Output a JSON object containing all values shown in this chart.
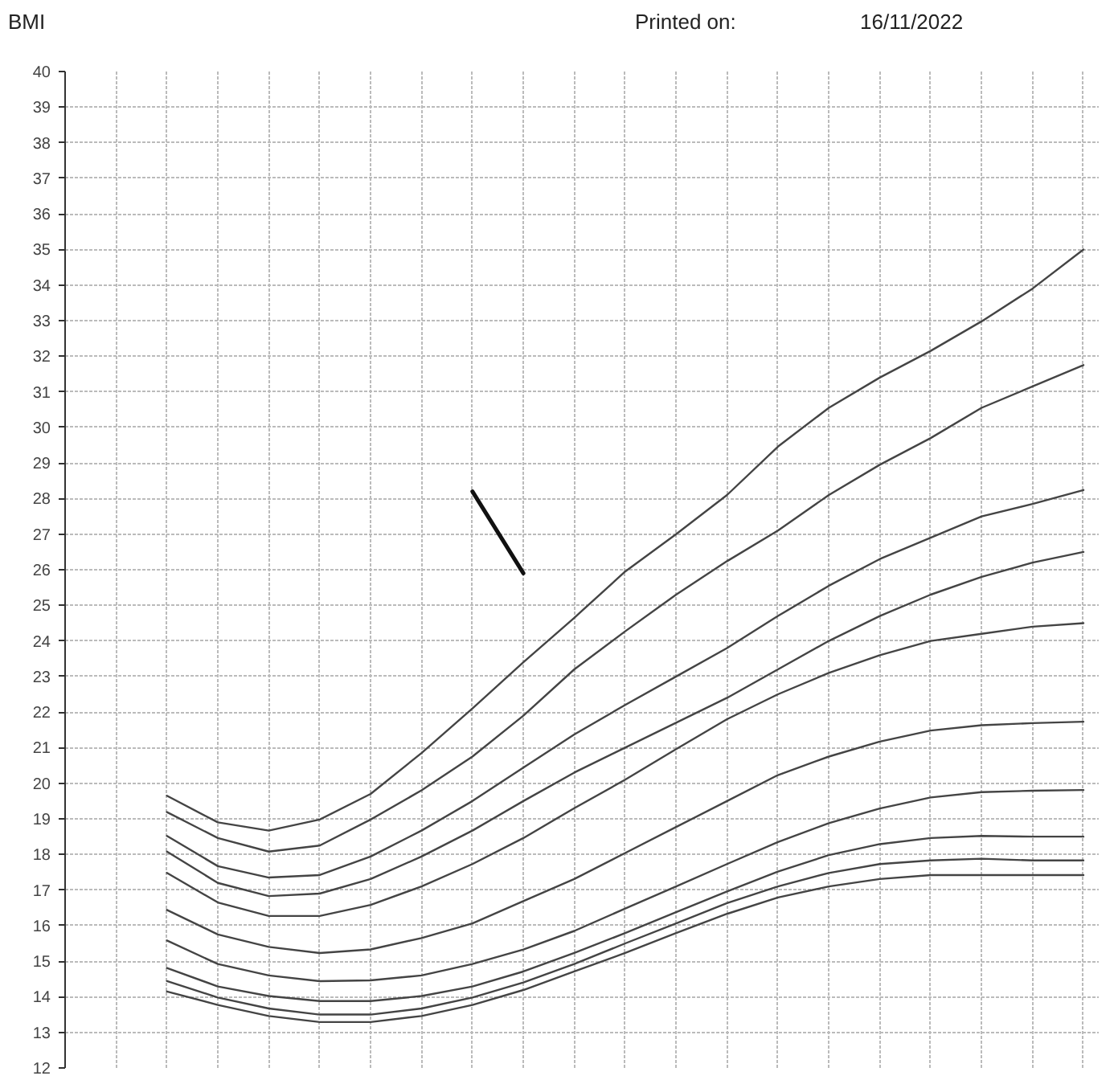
{
  "chart_data": {
    "type": "line",
    "title": "BMI",
    "annotations": [
      "Printed on:",
      "16/11/2022"
    ],
    "categories": [
      null,
      null,
      null,
      null,
      null,
      null,
      null,
      null,
      null,
      null,
      null,
      null,
      null,
      null,
      null,
      null,
      null,
      null,
      null,
      null,
      null
    ],
    "series": [
      {
        "color": "#444444",
        "values": [
          null,
          null,
          19.65,
          18.9,
          18.67,
          18.98,
          19.7,
          20.85,
          22.1,
          23.4,
          24.65,
          25.95,
          27.0,
          28.1,
          29.46,
          30.55,
          31.4,
          32.15,
          32.98,
          33.9,
          35.0
        ]
      },
      {
        "color": "#444444",
        "values": [
          null,
          null,
          19.19,
          18.46,
          18.08,
          18.25,
          18.98,
          19.8,
          20.75,
          21.9,
          23.2,
          24.27,
          25.3,
          26.24,
          27.1,
          28.1,
          28.95,
          29.7,
          30.55,
          31.15,
          31.75
        ]
      },
      {
        "color": "#444444",
        "values": [
          null,
          null,
          18.52,
          17.67,
          17.35,
          17.42,
          17.94,
          18.67,
          19.5,
          20.44,
          21.37,
          22.2,
          23.0,
          23.8,
          24.7,
          25.55,
          26.3,
          26.9,
          27.5,
          27.85,
          28.24
        ]
      },
      {
        "color": "#444444",
        "values": [
          null,
          null,
          18.08,
          17.2,
          16.83,
          16.9,
          17.31,
          17.94,
          18.67,
          19.5,
          20.3,
          21.0,
          21.7,
          22.4,
          23.2,
          24.0,
          24.7,
          25.3,
          25.8,
          26.2,
          26.5
        ]
      },
      {
        "color": "#444444",
        "values": [
          null,
          null,
          17.48,
          16.65,
          16.27,
          16.27,
          16.58,
          17.1,
          17.73,
          18.46,
          19.3,
          20.1,
          20.96,
          21.8,
          22.5,
          23.1,
          23.6,
          24.0,
          24.2,
          24.4,
          24.5
        ]
      },
      {
        "color": "#444444",
        "values": [
          null,
          null,
          16.44,
          15.75,
          15.4,
          15.23,
          15.33,
          15.65,
          16.06,
          16.69,
          17.31,
          18.04,
          18.77,
          19.5,
          20.23,
          20.75,
          21.17,
          21.48,
          21.63,
          21.69,
          21.73
        ]
      },
      {
        "color": "#444444",
        "values": [
          null,
          null,
          15.58,
          14.92,
          14.6,
          14.44,
          14.46,
          14.6,
          14.92,
          15.33,
          15.85,
          16.48,
          17.1,
          17.73,
          18.35,
          18.88,
          19.29,
          19.6,
          19.75,
          19.79,
          19.81
        ]
      },
      {
        "color": "#444444",
        "values": [
          null,
          null,
          14.81,
          14.29,
          14.02,
          13.88,
          13.88,
          14.02,
          14.29,
          14.71,
          15.23,
          15.79,
          16.38,
          16.96,
          17.52,
          17.98,
          18.29,
          18.46,
          18.52,
          18.5,
          18.5
        ]
      },
      {
        "color": "#444444",
        "values": [
          null,
          null,
          14.44,
          13.98,
          13.67,
          13.5,
          13.5,
          13.67,
          13.98,
          14.4,
          14.92,
          15.5,
          16.06,
          16.63,
          17.1,
          17.48,
          17.73,
          17.83,
          17.88,
          17.83,
          17.83
        ]
      },
      {
        "color": "#444444",
        "values": [
          null,
          null,
          14.15,
          13.77,
          13.46,
          13.29,
          13.29,
          13.46,
          13.77,
          14.19,
          14.71,
          15.23,
          15.79,
          16.33,
          16.79,
          17.1,
          17.31,
          17.42,
          17.42,
          17.42,
          17.42
        ]
      },
      {
        "color": "#111111",
        "values": [
          null,
          null,
          null,
          null,
          null,
          null,
          null,
          null,
          28.2,
          25.9,
          null,
          null,
          null,
          null,
          null,
          null,
          null,
          null,
          null,
          null,
          null
        ]
      }
    ],
    "ylim": [
      12,
      40
    ],
    "yticks": [
      12,
      13,
      14,
      15,
      16,
      17,
      18,
      19,
      20,
      21,
      22,
      23,
      24,
      25,
      26,
      27,
      28,
      29,
      30,
      31,
      32,
      33,
      34,
      35,
      36,
      37,
      38,
      39,
      40
    ],
    "grid": true,
    "tick_labels": "y",
    "line_style": "solid"
  }
}
